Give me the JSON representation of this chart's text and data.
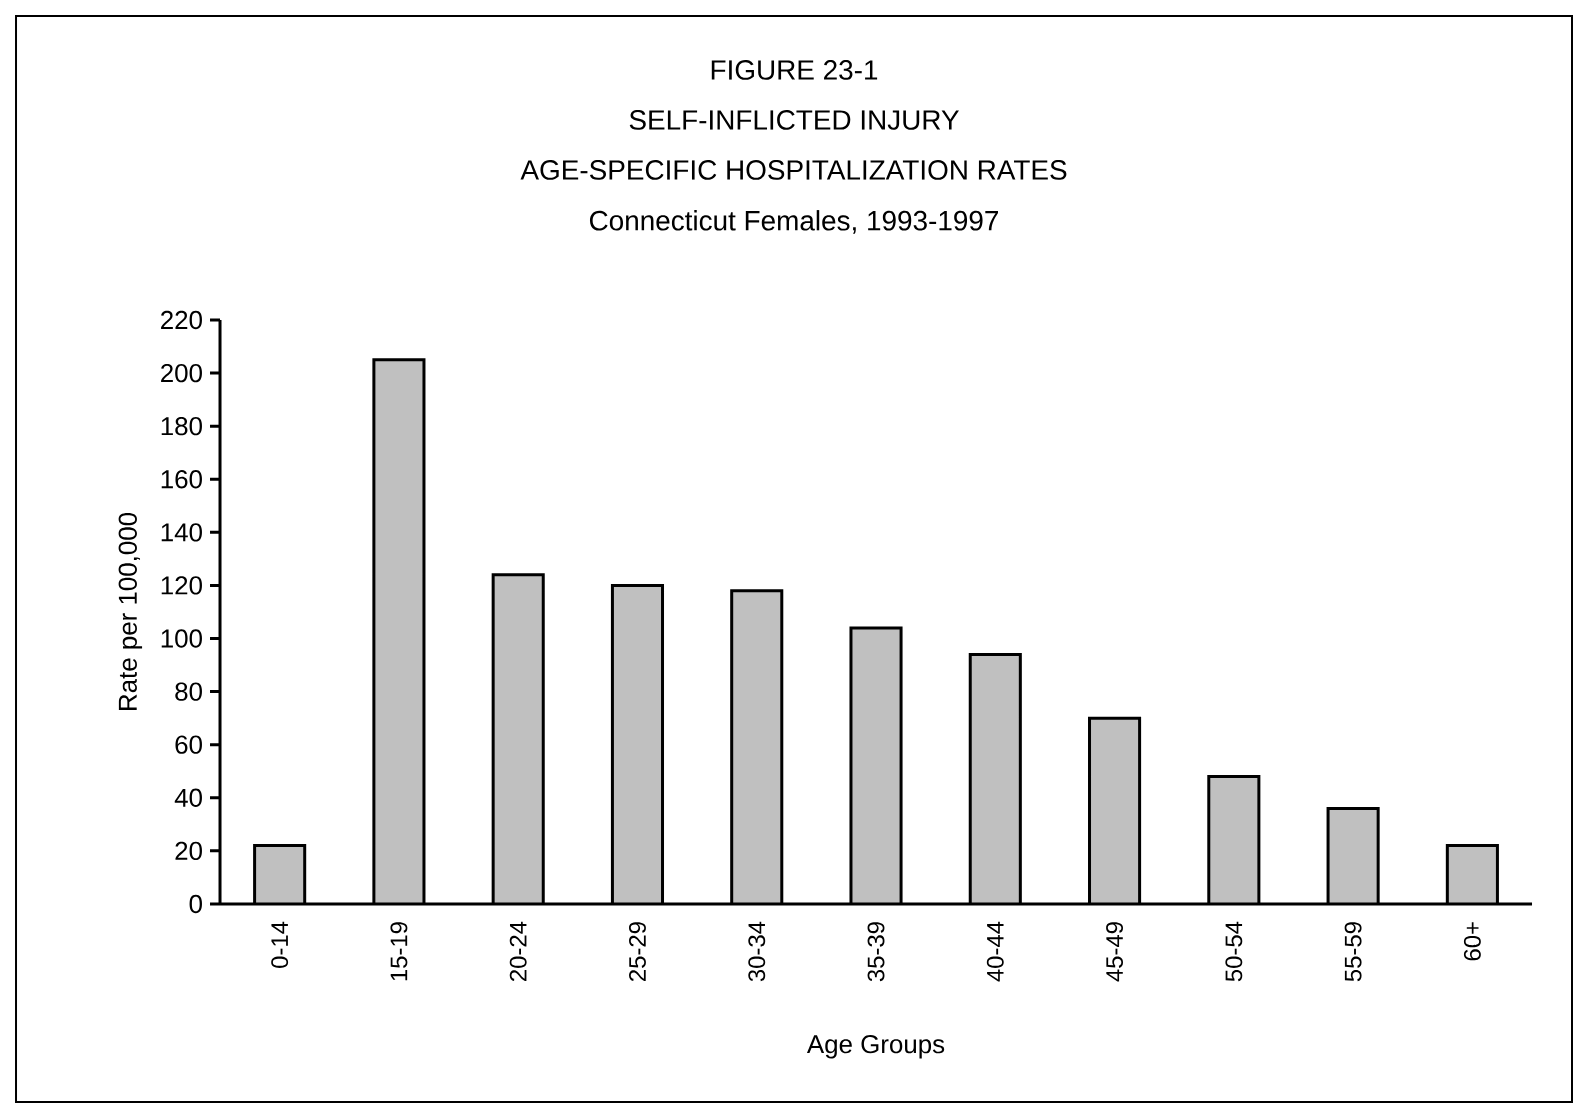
{
  "chart_data": {
    "type": "bar",
    "title": "FIGURE 23-1",
    "subtitle": "SELF-INFLICTED INJURY",
    "annotations": [
      "AGE-SPECIFIC HOSPITALIZATION RATES",
      "Connecticut Females, 1993-1997"
    ],
    "xlabel": "Age Groups",
    "ylabel": "Rate per 100,000",
    "categories": [
      "0-14",
      "15-19",
      "20-24",
      "25-29",
      "30-34",
      "35-39",
      "40-44",
      "45-49",
      "50-54",
      "55-59",
      "60+"
    ],
    "values": [
      22,
      205,
      124,
      120,
      118,
      104,
      94,
      70,
      48,
      36,
      22
    ],
    "color": "#c0c0c0",
    "ylim": [
      0,
      220
    ],
    "yticks": [
      0,
      20,
      40,
      60,
      80,
      100,
      120,
      140,
      160,
      180,
      200,
      220
    ],
    "grid": false
  }
}
